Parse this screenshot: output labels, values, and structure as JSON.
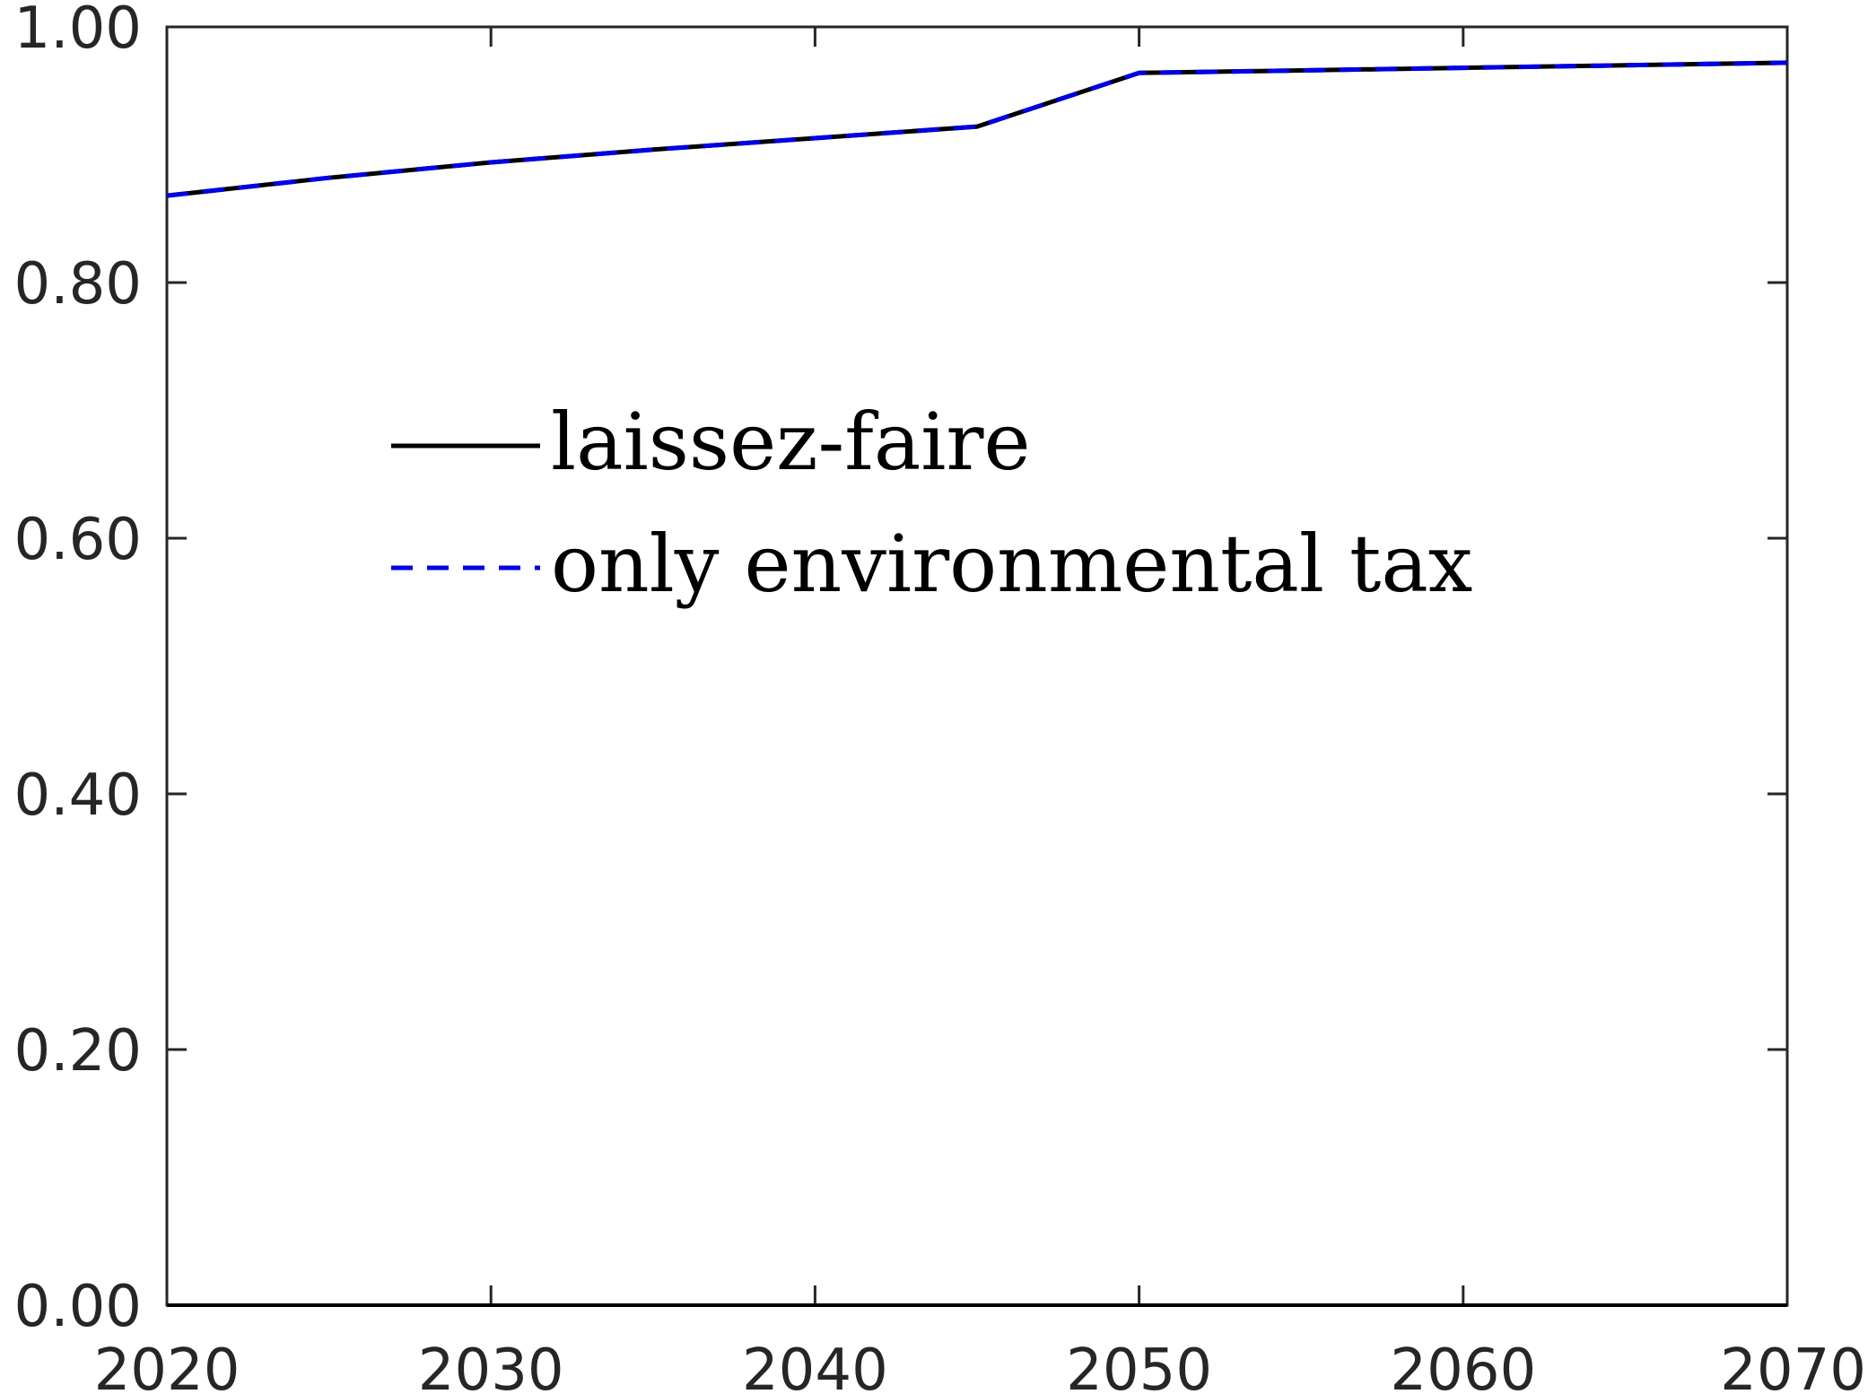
{
  "chart_data": {
    "type": "line",
    "title": "",
    "xlabel": "",
    "ylabel": "",
    "xlim": [
      2020,
      2070
    ],
    "ylim": [
      0,
      1
    ],
    "x_ticks": [
      "2020",
      "2030",
      "2040",
      "2050",
      "2060",
      "2070"
    ],
    "y_ticks": [
      "0.00",
      "0.20",
      "0.40",
      "0.60",
      "0.80",
      "1.00"
    ],
    "grid": false,
    "legend_position": "center-left",
    "series": [
      {
        "name": "laissez-faire",
        "color": "#000000",
        "style": "solid",
        "x": [
          2020,
          2025,
          2030,
          2035,
          2040,
          2045,
          2050,
          2055,
          2060,
          2065,
          2070
        ],
        "y": [
          0.868,
          0.882,
          0.894,
          0.904,
          0.913,
          0.922,
          0.964,
          0.966,
          0.968,
          0.97,
          0.972
        ]
      },
      {
        "name": "only environmental tax",
        "color": "#0000e6",
        "style": "dashed",
        "x": [
          2020,
          2025,
          2030,
          2035,
          2040,
          2045,
          2050,
          2055,
          2060,
          2065,
          2070
        ],
        "y": [
          0.868,
          0.882,
          0.894,
          0.904,
          0.913,
          0.922,
          0.964,
          0.966,
          0.968,
          0.97,
          0.972
        ]
      }
    ]
  }
}
